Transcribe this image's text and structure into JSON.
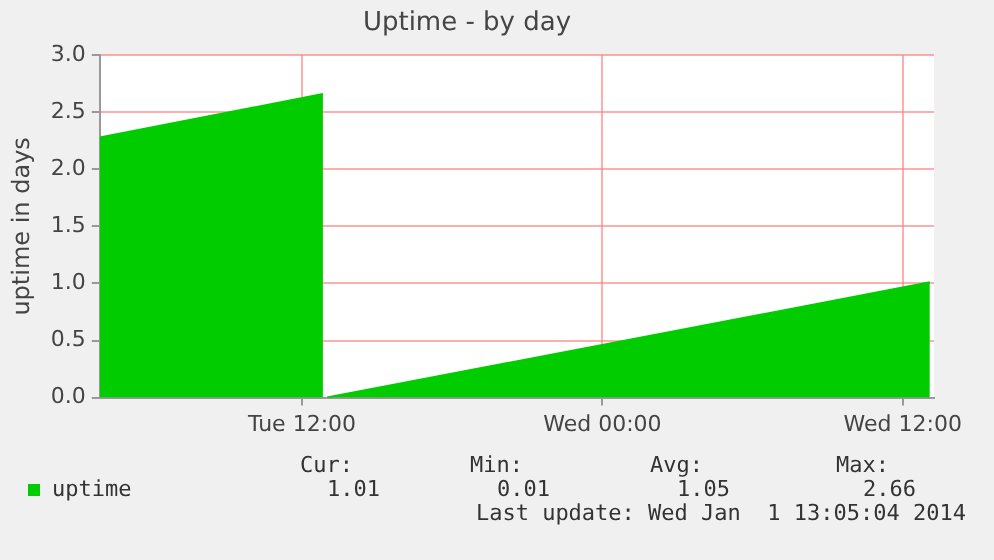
{
  "chart_data": {
    "type": "area",
    "title": "Uptime - by day",
    "ylabel": "uptime in days",
    "x": [
      "2013-12-31T03:55",
      "2013-12-31T12:50",
      "2013-12-31T12:54",
      "2013-12-31T13:00",
      "2014-01-01T13:05"
    ],
    "series": [
      {
        "name": "uptime",
        "color": "#00cc00",
        "values": [
          2.28,
          2.66,
          null,
          0.0,
          1.01
        ]
      }
    ],
    "xlim": [
      "2013-12-31T03:55",
      "2014-01-01T13:15"
    ],
    "xticks": [
      {
        "value": "2013-12-31T12:00",
        "label": "Tue 12:00"
      },
      {
        "value": "2014-01-01T00:00",
        "label": "Wed 00:00"
      },
      {
        "value": "2014-01-01T12:00",
        "label": "Wed 12:00"
      }
    ],
    "ylim": [
      0,
      3
    ],
    "yticks": [
      {
        "value": 0,
        "label": "0.0"
      },
      {
        "value": 0.5,
        "label": "0.5"
      },
      {
        "value": 1,
        "label": "1.0"
      },
      {
        "value": 1.5,
        "label": "1.5"
      },
      {
        "value": 2,
        "label": "2.0"
      },
      {
        "value": 2.5,
        "label": "2.5"
      },
      {
        "value": 3,
        "label": "3.0"
      }
    ],
    "grid": true,
    "legend": "bottom left",
    "annotations": [
      "Cur:",
      "Min:",
      "Avg:",
      "Max:",
      "1.01",
      "0.01",
      "1.05",
      "2.66",
      "Last update: Wed Jan  1 13:05:04 2014"
    ]
  }
}
